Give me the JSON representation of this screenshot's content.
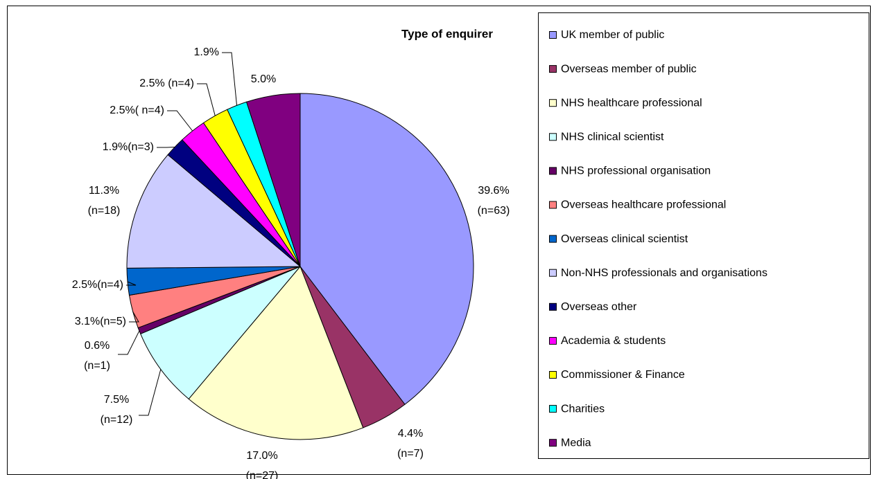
{
  "chart_data": {
    "type": "pie",
    "title": "Type of enquirer",
    "categories": [
      "UK member of public",
      "Overseas member of public",
      "NHS healthcare professional",
      "NHS clinical scientist",
      "NHS professional organisation",
      "Overseas healthcare professional",
      "Overseas clinical scientist",
      "Non-NHS professionals and organisations",
      "Overseas other",
      "Academia & students",
      "Commissioner & Finance",
      "Charities",
      "Media"
    ],
    "values": [
      39.6,
      4.4,
      17.0,
      7.5,
      0.6,
      3.1,
      2.5,
      11.3,
      1.9,
      2.5,
      2.5,
      1.9,
      5.0
    ],
    "value_labels": [
      [
        "39.6%",
        "(n=63)"
      ],
      [
        "4.4%",
        "(n=7)"
      ],
      [
        "17.0%",
        "(n=27)"
      ],
      [
        "7.5%",
        "(n=12)"
      ],
      [
        "0.6%",
        "(n=1)"
      ],
      [
        "3.1%(n=5)"
      ],
      [
        "2.5%(n=4)"
      ],
      [
        "11.3%",
        "(n=18)"
      ],
      [
        "1.9%(n=3)"
      ],
      [
        "2.5%( n=4)"
      ],
      [
        "2.5% (n=4)"
      ],
      [
        "1.9%"
      ],
      [
        "5.0%"
      ]
    ],
    "colors": [
      "#9999ff",
      "#993366",
      "#ffffcc",
      "#ccffff",
      "#660066",
      "#ff8080",
      "#0066cc",
      "#ccccff",
      "#000080",
      "#ff00ff",
      "#ffff00",
      "#00ffff",
      "#800080"
    ],
    "legend": "right"
  }
}
